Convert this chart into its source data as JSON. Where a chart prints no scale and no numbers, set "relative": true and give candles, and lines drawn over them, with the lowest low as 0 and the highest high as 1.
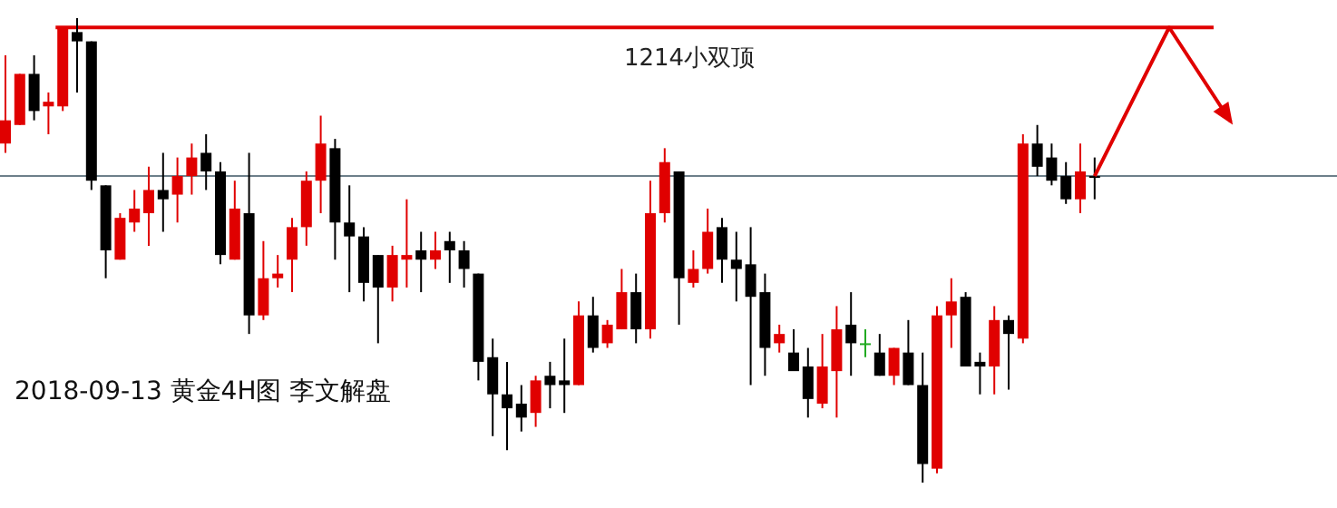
{
  "chart_data": {
    "type": "candlestick",
    "relative": true,
    "categories": [
      null,
      null,
      null,
      null,
      null,
      null,
      null,
      null,
      null,
      null,
      null,
      null,
      null,
      null,
      null,
      null,
      null,
      null,
      null,
      null,
      null,
      null,
      null,
      null,
      null,
      null,
      null,
      null,
      null,
      null,
      null,
      null,
      null,
      null,
      null,
      null,
      null,
      null,
      null,
      null,
      null,
      null,
      null,
      null,
      null,
      null,
      null,
      null,
      null,
      null,
      null,
      null,
      null,
      null,
      null,
      null,
      null,
      null,
      null,
      null,
      null,
      null,
      null,
      null,
      null,
      null,
      null,
      null,
      null,
      null,
      null,
      null,
      null,
      null,
      null,
      null,
      null
    ],
    "ohlc": [
      [
        0.73,
        0.92,
        0.71,
        0.78
      ],
      [
        0.77,
        0.88,
        0.77,
        0.88
      ],
      [
        0.88,
        0.92,
        0.78,
        0.8
      ],
      [
        0.81,
        0.84,
        0.75,
        0.82
      ],
      [
        0.81,
        0.98,
        0.8,
        0.98
      ],
      [
        0.97,
        1,
        0.84,
        0.95
      ],
      [
        0.95,
        0.95,
        0.63,
        0.65
      ],
      [
        0.64,
        0.64,
        0.44,
        0.5
      ],
      [
        0.48,
        0.58,
        0.48,
        0.57
      ],
      [
        0.56,
        0.63,
        0.54,
        0.59
      ],
      [
        0.58,
        0.68,
        0.51,
        0.63
      ],
      [
        0.63,
        0.71,
        0.54,
        0.61
      ],
      [
        0.62,
        0.7,
        0.56,
        0.66
      ],
      [
        0.66,
        0.73,
        0.62,
        0.7
      ],
      [
        0.71,
        0.75,
        0.63,
        0.67
      ],
      [
        0.67,
        0.69,
        0.47,
        0.49
      ],
      [
        0.48,
        0.65,
        0.48,
        0.59
      ],
      [
        0.58,
        0.71,
        0.32,
        0.36
      ],
      [
        0.36,
        0.52,
        0.35,
        0.44
      ],
      [
        0.44,
        0.49,
        0.42,
        0.45
      ],
      [
        0.48,
        0.57,
        0.41,
        0.55
      ],
      [
        0.55,
        0.67,
        0.51,
        0.65
      ],
      [
        0.65,
        0.79,
        0.58,
        0.73
      ],
      [
        0.72,
        0.74,
        0.48,
        0.56
      ],
      [
        0.56,
        0.64,
        0.41,
        0.53
      ],
      [
        0.53,
        0.55,
        0.39,
        0.43
      ],
      [
        0.49,
        0.49,
        0.3,
        0.42
      ],
      [
        0.42,
        0.51,
        0.39,
        0.49
      ],
      [
        0.48,
        0.61,
        0.42,
        0.49
      ],
      [
        0.5,
        0.54,
        0.41,
        0.48
      ],
      [
        0.48,
        0.54,
        0.46,
        0.5
      ],
      [
        0.52,
        0.54,
        0.43,
        0.5
      ],
      [
        0.5,
        0.52,
        0.42,
        0.46
      ],
      [
        0.45,
        0.45,
        0.22,
        0.26
      ],
      [
        0.27,
        0.31,
        0.1,
        0.19
      ],
      [
        0.19,
        0.26,
        0.07,
        0.16
      ],
      [
        0.17,
        0.21,
        0.11,
        0.14
      ],
      [
        0.15,
        0.23,
        0.12,
        0.22
      ],
      [
        0.23,
        0.26,
        0.16,
        0.21
      ],
      [
        0.22,
        0.31,
        0.15,
        0.21
      ],
      [
        0.21,
        0.39,
        0.21,
        0.36
      ],
      [
        0.36,
        0.4,
        0.28,
        0.29
      ],
      [
        0.3,
        0.35,
        0.29,
        0.34
      ],
      [
        0.33,
        0.46,
        0.33,
        0.41
      ],
      [
        0.41,
        0.45,
        0.3,
        0.33
      ],
      [
        0.33,
        0.65,
        0.31,
        0.58
      ],
      [
        0.58,
        0.72,
        0.56,
        0.69
      ],
      [
        0.67,
        0.67,
        0.34,
        0.44
      ],
      [
        0.43,
        0.5,
        0.42,
        0.46
      ],
      [
        0.46,
        0.59,
        0.45,
        0.54
      ],
      [
        0.55,
        0.57,
        0.43,
        0.48
      ],
      [
        0.48,
        0.54,
        0.39,
        0.46
      ],
      [
        0.47,
        0.55,
        0.21,
        0.4
      ],
      [
        0.41,
        0.45,
        0.23,
        0.29
      ],
      [
        0.3,
        0.34,
        0.28,
        0.32
      ],
      [
        0.28,
        0.33,
        0.24,
        0.24
      ],
      [
        0.25,
        0.29,
        0.14,
        0.18
      ],
      [
        0.17,
        0.32,
        0.16,
        0.25
      ],
      [
        0.24,
        0.38,
        0.14,
        0.33
      ],
      [
        0.34,
        0.41,
        0.23,
        0.3
      ],
      [
        0.3,
        0.33,
        0.27,
        0.3
      ],
      [
        0.28,
        0.32,
        0.23,
        0.23
      ],
      [
        0.23,
        0.29,
        0.21,
        0.29
      ],
      [
        0.28,
        0.35,
        0.21,
        0.21
      ],
      [
        0.21,
        0.28,
        0,
        0.04
      ],
      [
        0.03,
        0.38,
        0.02,
        0.36
      ],
      [
        0.36,
        0.44,
        0.29,
        0.39
      ],
      [
        0.4,
        0.41,
        0.25,
        0.25
      ],
      [
        0.26,
        0.28,
        0.19,
        0.25
      ],
      [
        0.25,
        0.38,
        0.19,
        0.35
      ],
      [
        0.35,
        0.36,
        0.2,
        0.32
      ],
      [
        0.31,
        0.75,
        0.3,
        0.73
      ],
      [
        0.73,
        0.77,
        0.66,
        0.68
      ],
      [
        0.7,
        0.73,
        0.64,
        0.65
      ],
      [
        0.66,
        0.69,
        0.6,
        0.61
      ],
      [
        0.61,
        0.73,
        0.58,
        0.67
      ],
      [
        0.66,
        0.7,
        0.61,
        0.66
      ]
    ],
    "colors": [
      "#e00000",
      "#e00000",
      "#000000",
      "#e00000",
      "#e00000",
      "#000000",
      "#000000",
      "#000000",
      "#e00000",
      "#e00000",
      "#e00000",
      "#000000",
      "#e00000",
      "#e00000",
      "#000000",
      "#000000",
      "#e00000",
      "#000000",
      "#e00000",
      "#e00000",
      "#e00000",
      "#e00000",
      "#e00000",
      "#000000",
      "#000000",
      "#000000",
      "#000000",
      "#e00000",
      "#e00000",
      "#000000",
      "#e00000",
      "#000000",
      "#000000",
      "#000000",
      "#000000",
      "#000000",
      "#000000",
      "#e00000",
      "#000000",
      "#000000",
      "#e00000",
      "#000000",
      "#e00000",
      "#e00000",
      "#000000",
      "#e00000",
      "#e00000",
      "#000000",
      "#e00000",
      "#e00000",
      "#000000",
      "#000000",
      "#000000",
      "#000000",
      "#e00000",
      "#000000",
      "#000000",
      "#e00000",
      "#e00000",
      "#000000",
      "#22aa22",
      "#000000",
      "#e00000",
      "#000000",
      "#000000",
      "#e00000",
      "#e00000",
      "#000000",
      "#000000",
      "#e00000",
      "#000000",
      "#e00000",
      "#000000",
      "#000000",
      "#000000",
      "#e00000",
      "#000000"
    ],
    "ref_lines": [
      {
        "axis": "y",
        "value": 0.98,
        "label": "1214小双顶",
        "color": "#e00000"
      },
      {
        "axis": "y",
        "value": 0.66,
        "color": "#6d7f8a"
      }
    ],
    "annotations": [
      "2018-09-13 黄金4H图 李文解盘"
    ]
  }
}
